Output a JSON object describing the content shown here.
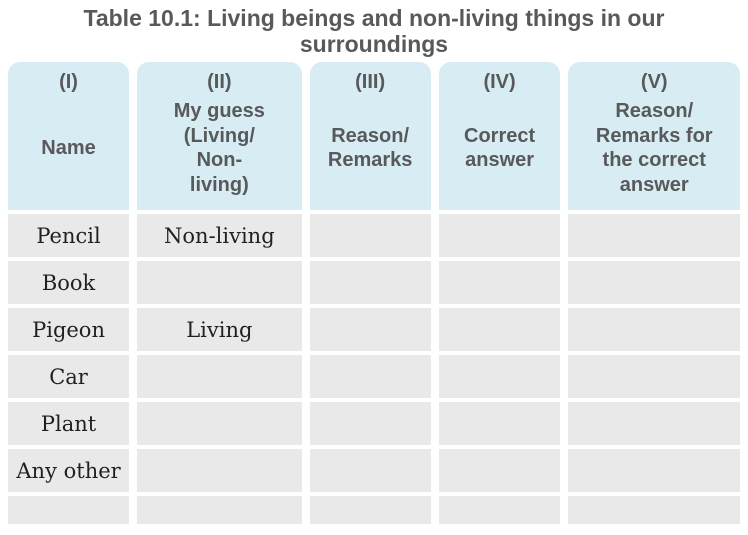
{
  "title": {
    "lines": [
      "Table 10.1: Living beings and non-living things in our",
      "surroundings"
    ]
  },
  "table": {
    "columns": [
      {
        "numeral": "(I)",
        "lines": [
          "Name"
        ]
      },
      {
        "numeral": "(II)",
        "lines": [
          "My guess",
          "(Living/",
          "Non-",
          "living)"
        ]
      },
      {
        "numeral": "(III)",
        "lines": [
          "Reason/",
          "Remarks"
        ]
      },
      {
        "numeral": "(IV)",
        "lines": [
          "Correct",
          "answer"
        ]
      },
      {
        "numeral": "(V)",
        "lines": [
          "Reason/",
          "Remarks for",
          "the correct",
          "answer"
        ]
      }
    ],
    "rows": [
      {
        "name": "Pencil",
        "guess": "Non-living",
        "reason": "",
        "correct_answer": "",
        "reason_correct": ""
      },
      {
        "name": "Book",
        "guess": "",
        "reason": "",
        "correct_answer": "",
        "reason_correct": ""
      },
      {
        "name": "Pigeon",
        "guess": "Living",
        "reason": "",
        "correct_answer": "",
        "reason_correct": ""
      },
      {
        "name": "Car",
        "guess": "",
        "reason": "",
        "correct_answer": "",
        "reason_correct": ""
      },
      {
        "name": "Plant",
        "guess": "",
        "reason": "",
        "correct_answer": "",
        "reason_correct": ""
      },
      {
        "name": "Any other",
        "guess": "",
        "reason": "",
        "correct_answer": "",
        "reason_correct": ""
      },
      {
        "name": "",
        "guess": "",
        "reason": "",
        "correct_answer": "",
        "reason_correct": ""
      }
    ],
    "colors": {
      "header_bg": "#d7ecf3",
      "cell_bg": "#e9e9e9",
      "heading_text": "#58595b",
      "body_text": "#231f20"
    }
  }
}
